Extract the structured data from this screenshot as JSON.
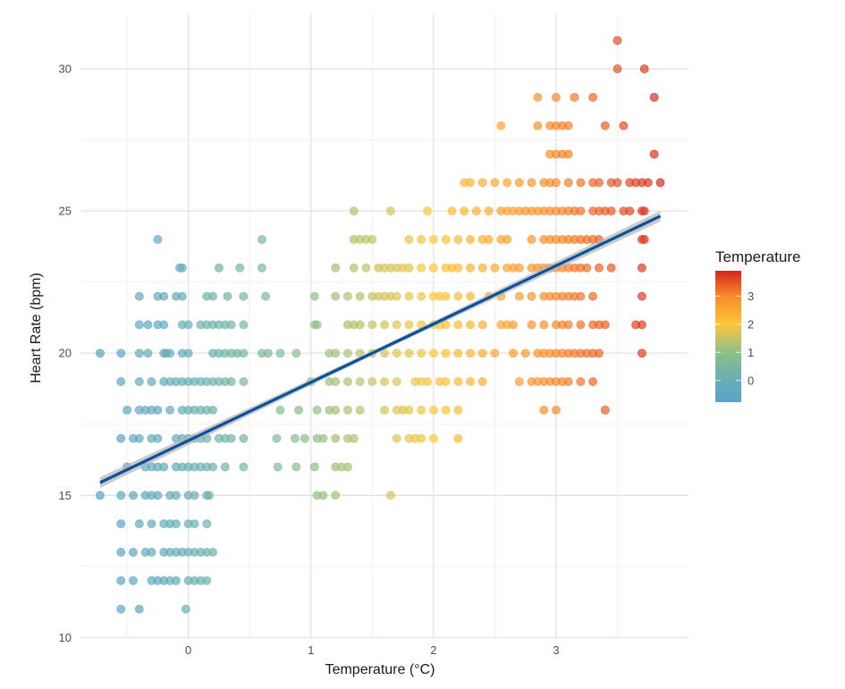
{
  "chart_data": {
    "type": "scatter",
    "title": "",
    "xlabel": "Temperature (°C)",
    "ylabel": "Heart Rate (bpm)",
    "xlim": [
      -0.88,
      4.08
    ],
    "ylim": [
      9.95,
      31.95
    ],
    "x_ticks": [
      0,
      1,
      2,
      3
    ],
    "y_ticks": [
      10,
      15,
      20,
      25,
      30
    ],
    "x_tick_labels": [
      "0",
      "1",
      "2",
      "3"
    ],
    "y_tick_labels": [
      "10",
      "15",
      "20",
      "25",
      "30"
    ],
    "grid": true,
    "point_opacity": 0.7,
    "points_by_heart_rate": [
      {
        "y": 31,
        "x": [
          3.5
        ]
      },
      {
        "y": 30,
        "x": [
          3.5,
          3.72
        ]
      },
      {
        "y": 29,
        "x": [
          2.85,
          3.0,
          3.15,
          3.3,
          3.8
        ]
      },
      {
        "y": 28,
        "x": [
          2.55,
          2.85,
          2.95,
          3.0,
          3.05,
          3.1,
          3.4,
          3.55
        ]
      },
      {
        "y": 27,
        "x": [
          2.95,
          3.0,
          3.05,
          3.1,
          3.8
        ]
      },
      {
        "y": 26,
        "x": [
          2.25,
          2.3,
          2.4,
          2.5,
          2.6,
          2.7,
          2.8,
          2.9,
          2.95,
          3.0,
          3.1,
          3.2,
          3.3,
          3.35,
          3.45,
          3.5,
          3.6,
          3.65,
          3.7,
          3.75,
          3.85
        ]
      },
      {
        "y": 25,
        "x": [
          1.35,
          1.65,
          1.95,
          2.15,
          2.25,
          2.35,
          2.45,
          2.55,
          2.6,
          2.65,
          2.7,
          2.75,
          2.8,
          2.85,
          2.9,
          2.95,
          3.0,
          3.05,
          3.1,
          3.15,
          3.2,
          3.3,
          3.35,
          3.4,
          3.45,
          3.55,
          3.6,
          3.7,
          3.72
        ]
      },
      {
        "y": 24,
        "x": [
          -0.25,
          0.6,
          1.35,
          1.4,
          1.45,
          1.5,
          1.8,
          1.9,
          2.0,
          2.1,
          2.2,
          2.3,
          2.4,
          2.45,
          2.55,
          2.6,
          2.8,
          2.9,
          2.95,
          3.0,
          3.05,
          3.1,
          3.15,
          3.2,
          3.25,
          3.3,
          3.35,
          3.7,
          3.72
        ]
      },
      {
        "y": 23,
        "x": [
          -0.07,
          -0.05,
          0.25,
          0.42,
          0.6,
          1.2,
          1.35,
          1.45,
          1.55,
          1.6,
          1.65,
          1.7,
          1.75,
          1.8,
          1.9,
          2.0,
          2.1,
          2.15,
          2.2,
          2.3,
          2.4,
          2.5,
          2.6,
          2.65,
          2.7,
          2.8,
          2.85,
          2.9,
          2.95,
          3.0,
          3.05,
          3.1,
          3.15,
          3.2,
          3.25,
          3.35,
          3.45,
          3.7
        ]
      },
      {
        "y": 22,
        "x": [
          -0.4,
          -0.25,
          -0.2,
          -0.1,
          -0.05,
          0.15,
          0.2,
          0.32,
          0.45,
          0.63,
          1.03,
          1.2,
          1.3,
          1.4,
          1.5,
          1.55,
          1.6,
          1.65,
          1.7,
          1.8,
          1.9,
          2.0,
          2.05,
          2.1,
          2.2,
          2.3,
          2.45,
          2.55,
          2.7,
          2.8,
          2.9,
          2.95,
          3.0,
          3.05,
          3.1,
          3.15,
          3.2,
          3.3,
          3.7
        ]
      },
      {
        "y": 21,
        "x": [
          -0.4,
          -0.33,
          -0.25,
          -0.2,
          -0.05,
          0.0,
          0.1,
          0.15,
          0.2,
          0.25,
          0.3,
          0.35,
          0.45,
          1.03,
          1.05,
          1.3,
          1.35,
          1.4,
          1.5,
          1.6,
          1.7,
          1.8,
          1.9,
          2.0,
          2.05,
          2.1,
          2.2,
          2.3,
          2.4,
          2.55,
          2.6,
          2.65,
          2.8,
          2.9,
          3.0,
          3.05,
          3.1,
          3.2,
          3.3,
          3.35,
          3.4,
          3.65,
          3.7
        ]
      },
      {
        "y": 20,
        "x": [
          -0.72,
          -0.55,
          -0.4,
          -0.33,
          -0.2,
          -0.18,
          -0.15,
          -0.05,
          0.0,
          0.2,
          0.25,
          0.3,
          0.35,
          0.4,
          0.45,
          0.6,
          0.65,
          0.75,
          0.88,
          1.15,
          1.2,
          1.3,
          1.4,
          1.5,
          1.6,
          1.7,
          1.8,
          1.9,
          2.0,
          2.1,
          2.2,
          2.3,
          2.4,
          2.5,
          2.65,
          2.75,
          2.85,
          2.9,
          2.95,
          3.0,
          3.05,
          3.1,
          3.15,
          3.2,
          3.25,
          3.3,
          3.35,
          3.7
        ]
      },
      {
        "y": 19,
        "x": [
          -0.55,
          -0.4,
          -0.3,
          -0.2,
          -0.15,
          -0.1,
          -0.05,
          0.0,
          0.05,
          0.1,
          0.15,
          0.2,
          0.25,
          0.3,
          0.35,
          0.45,
          1.0,
          1.15,
          1.2,
          1.3,
          1.4,
          1.5,
          1.6,
          1.7,
          1.85,
          1.9,
          1.95,
          2.05,
          2.1,
          2.2,
          2.3,
          2.4,
          2.7,
          2.8,
          2.85,
          2.9,
          2.95,
          3.0,
          3.05,
          3.1,
          3.2,
          3.3
        ]
      },
      {
        "y": 18,
        "x": [
          -0.5,
          -0.4,
          -0.35,
          -0.3,
          -0.25,
          -0.15,
          -0.05,
          0.0,
          0.05,
          0.1,
          0.15,
          0.2,
          0.75,
          0.9,
          1.05,
          1.15,
          1.2,
          1.3,
          1.4,
          1.6,
          1.7,
          1.75,
          1.8,
          1.9,
          2.0,
          2.1,
          2.2,
          2.9,
          3.0,
          3.4
        ]
      },
      {
        "y": 17,
        "x": [
          -0.55,
          -0.45,
          -0.4,
          -0.3,
          -0.25,
          -0.1,
          -0.05,
          0.0,
          0.05,
          0.1,
          0.15,
          0.25,
          0.3,
          0.35,
          0.45,
          0.72,
          0.87,
          0.95,
          1.05,
          1.1,
          1.2,
          1.3,
          1.35,
          1.7,
          1.8,
          1.85,
          1.9,
          2.0,
          2.2
        ]
      },
      {
        "y": 16,
        "x": [
          -0.5,
          -0.35,
          -0.3,
          -0.25,
          -0.2,
          -0.1,
          -0.05,
          0.0,
          0.05,
          0.1,
          0.15,
          0.2,
          0.3,
          0.45,
          0.73,
          0.88,
          1.03,
          1.2,
          1.25,
          1.3
        ]
      },
      {
        "y": 15,
        "x": [
          -0.72,
          -0.55,
          -0.45,
          -0.35,
          -0.3,
          -0.25,
          -0.15,
          -0.1,
          0.0,
          0.05,
          0.15,
          0.17,
          1.05,
          1.1,
          1.2,
          1.65
        ]
      },
      {
        "y": 14,
        "x": [
          -0.55,
          -0.4,
          -0.3,
          -0.2,
          -0.15,
          -0.1,
          0.0,
          0.05,
          0.15
        ]
      },
      {
        "y": 13,
        "x": [
          -0.55,
          -0.45,
          -0.35,
          -0.3,
          -0.2,
          -0.15,
          -0.1,
          -0.05,
          0.0,
          0.05,
          0.1,
          0.15,
          0.2
        ]
      },
      {
        "y": 12,
        "x": [
          -0.55,
          -0.45,
          -0.3,
          -0.25,
          -0.2,
          -0.15,
          -0.1,
          0.0,
          0.05,
          0.1,
          0.15
        ]
      },
      {
        "y": 11,
        "x": [
          -0.55,
          -0.4,
          -0.02
        ]
      }
    ],
    "trend_line": {
      "method": "linear",
      "x": [
        -0.72,
        3.85
      ],
      "y": [
        15.45,
        24.82
      ],
      "color": "#08519c",
      "confidence_band_color": "#b3b3b3"
    },
    "color_scale": {
      "title": "Temperature",
      "variable": "x",
      "range": [
        -0.77,
        3.9
      ],
      "ticks": [
        0,
        1,
        2,
        3
      ],
      "tick_labels": [
        "0",
        "1",
        "2",
        "3"
      ],
      "stops": [
        {
          "value": -0.77,
          "color": "#5aa2c8"
        },
        {
          "value": 0,
          "color": "#68aeb5"
        },
        {
          "value": 1,
          "color": "#8cc08a"
        },
        {
          "value": 2,
          "color": "#fdc63a"
        },
        {
          "value": 3,
          "color": "#f98a2a"
        },
        {
          "value": 3.9,
          "color": "#d7261e"
        }
      ],
      "placement": "right"
    }
  }
}
